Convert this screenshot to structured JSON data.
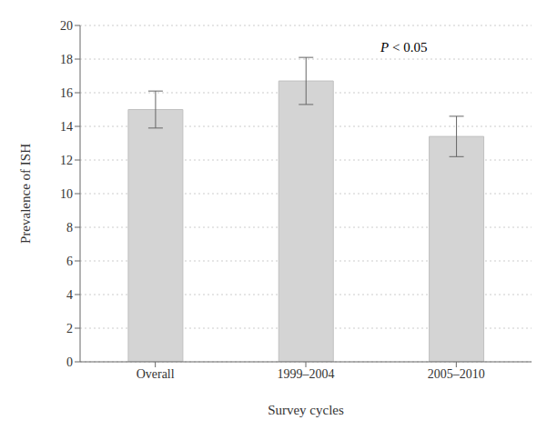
{
  "chart_data": {
    "type": "bar",
    "categories": [
      "Overall",
      "1999–2004",
      "2005–2010"
    ],
    "values": [
      15.0,
      16.7,
      13.4
    ],
    "errors": [
      1.1,
      1.4,
      1.2
    ],
    "color": "#d4d4d4",
    "xlabel": "Survey cycles",
    "ylabel": "Prevalence of ISH",
    "ylim": [
      0,
      20
    ],
    "yticks": [
      0,
      2,
      4,
      6,
      8,
      10,
      12,
      14,
      16,
      18,
      20
    ],
    "annotation": "P < 0.05",
    "grid": true
  }
}
